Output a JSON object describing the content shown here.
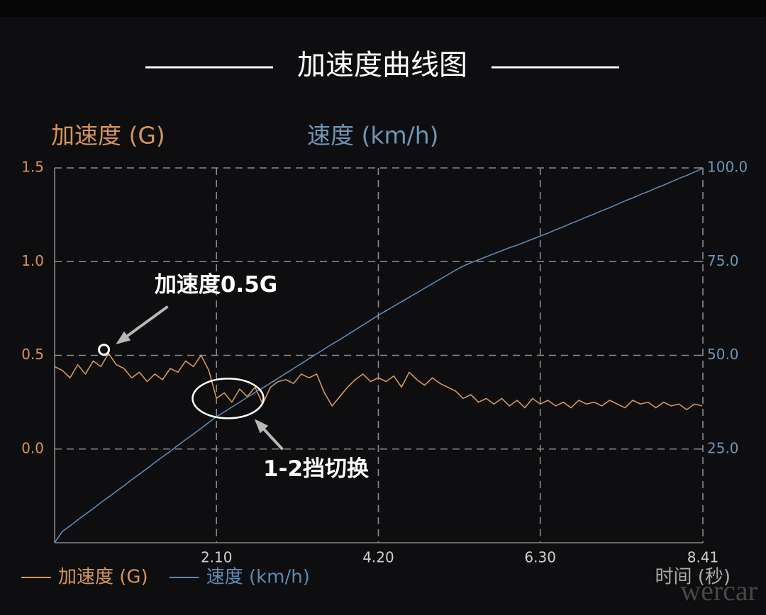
{
  "chart_data": {
    "type": "line",
    "title": "加速度曲线图",
    "ylabel": "加速度 (G)",
    "y2label": "速度 (km/h)",
    "xlabel": "时间 (秒)",
    "x": [
      0,
      0.1,
      0.2,
      0.3,
      0.4,
      0.5,
      0.6,
      0.7,
      0.8,
      0.9,
      1.0,
      1.1,
      1.2,
      1.3,
      1.4,
      1.5,
      1.6,
      1.7,
      1.8,
      1.9,
      2.0,
      2.1,
      2.2,
      2.3,
      2.4,
      2.5,
      2.6,
      2.7,
      2.8,
      2.9,
      3.0,
      3.1,
      3.2,
      3.3,
      3.4,
      3.5,
      3.6,
      3.7,
      3.8,
      3.9,
      4.0,
      4.1,
      4.2,
      4.3,
      4.4,
      4.5,
      4.6,
      4.7,
      4.8,
      4.9,
      5.0,
      5.1,
      5.2,
      5.3,
      5.4,
      5.5,
      5.6,
      5.7,
      5.8,
      5.9,
      6.0,
      6.1,
      6.2,
      6.3,
      6.4,
      6.5,
      6.6,
      6.7,
      6.8,
      6.9,
      7.0,
      7.1,
      7.2,
      7.3,
      7.4,
      7.5,
      7.6,
      7.7,
      7.8,
      7.9,
      8.0,
      8.1,
      8.2,
      8.3,
      8.4
    ],
    "series": [
      {
        "name": "加速度 (G)",
        "color": "#d4955a",
        "values": [
          0.44,
          0.42,
          0.38,
          0.45,
          0.4,
          0.47,
          0.44,
          0.51,
          0.45,
          0.43,
          0.38,
          0.41,
          0.36,
          0.4,
          0.37,
          0.43,
          0.41,
          0.47,
          0.44,
          0.5,
          0.42,
          0.27,
          0.3,
          0.25,
          0.32,
          0.28,
          0.33,
          0.24,
          0.33,
          0.36,
          0.37,
          0.35,
          0.4,
          0.38,
          0.4,
          0.3,
          0.23,
          0.28,
          0.33,
          0.37,
          0.4,
          0.36,
          0.38,
          0.36,
          0.39,
          0.33,
          0.41,
          0.37,
          0.34,
          0.38,
          0.35,
          0.33,
          0.31,
          0.27,
          0.29,
          0.25,
          0.27,
          0.24,
          0.27,
          0.23,
          0.26,
          0.22,
          0.27,
          0.24,
          0.26,
          0.23,
          0.25,
          0.22,
          0.26,
          0.24,
          0.25,
          0.23,
          0.26,
          0.24,
          0.22,
          0.26,
          0.24,
          0.25,
          0.22,
          0.25,
          0.23,
          0.24,
          0.21,
          0.24,
          0.23
        ]
      },
      {
        "name": "速度 (km/h)",
        "color": "#5f88b0",
        "axis": "y2",
        "values": [
          0,
          3.0,
          4.5,
          6.1,
          7.6,
          9.1,
          10.7,
          12.2,
          13.7,
          15.2,
          16.8,
          18.3,
          19.8,
          21.4,
          22.9,
          24.4,
          26.0,
          27.5,
          29.0,
          30.5,
          32.1,
          33.6,
          34.9,
          36.2,
          37.5,
          38.8,
          40.1,
          41.3,
          42.6,
          43.9,
          45.2,
          46.5,
          47.8,
          49.1,
          50.4,
          51.7,
          53.0,
          54.2,
          55.5,
          56.8,
          58.1,
          59.4,
          60.7,
          61.9,
          63.1,
          64.3,
          65.5,
          66.7,
          67.9,
          69.1,
          70.3,
          71.5,
          72.7,
          73.8,
          74.7,
          75.5,
          76.3,
          77.1,
          77.9,
          78.7,
          79.4,
          80.2,
          81.0,
          81.8,
          82.6,
          83.5,
          84.3,
          85.2,
          86.0,
          86.9,
          87.7,
          88.6,
          89.4,
          90.3,
          91.2,
          92.0,
          92.9,
          93.7,
          94.6,
          95.4,
          96.3,
          97.2,
          98.0,
          98.9,
          99.8
        ]
      }
    ],
    "xlim": [
      0,
      8.41
    ],
    "xticks": [
      {
        "value": 2.1,
        "label": "2.10"
      },
      {
        "value": 4.2,
        "label": "4.20"
      },
      {
        "value": 6.3,
        "label": "6.30"
      },
      8.41
    ],
    "ylim": [
      -0.5,
      1.5
    ],
    "yticks": [
      {
        "value": 0,
        "label": "0.0"
      },
      0.5,
      {
        "value": 1,
        "label": "1.0"
      },
      1.5
    ],
    "y2lim": [
      0,
      100
    ],
    "y2ticks": [
      {
        "value": 25,
        "label": "25.0"
      },
      {
        "value": 50,
        "label": "50.0"
      },
      {
        "value": 75,
        "label": "75.0"
      },
      {
        "value": 100,
        "label": "100.0"
      }
    ],
    "grid": true,
    "legend": "bottom-left",
    "annotations": [
      {
        "text": "加速度0.5G",
        "x": 0.64,
        "y": 0.53
      },
      {
        "text": "1-2挡切换",
        "x": 2.25,
        "y": 0.27
      }
    ],
    "watermark": "wercar"
  }
}
